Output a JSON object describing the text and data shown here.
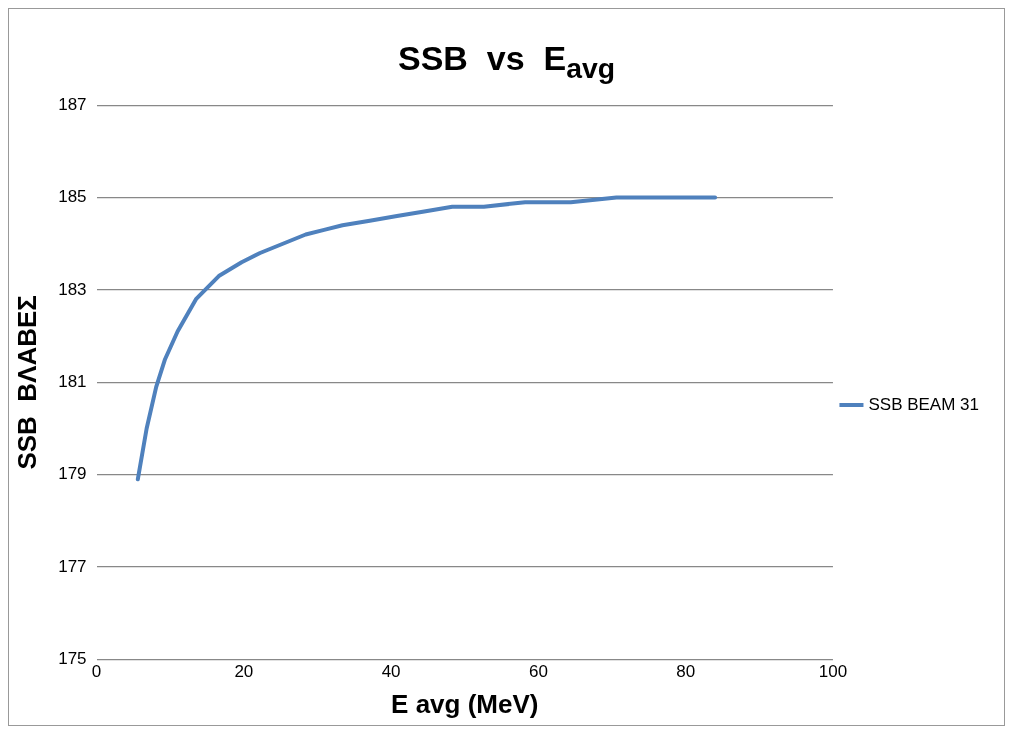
{
  "chart_data": {
    "type": "line",
    "title": "SSB  vs  E$_{avg}$",
    "xlabel": "E avg (MeV)",
    "ylabel": "SSB  ΒΛΑΒΕΣ",
    "xlim": [
      0,
      100
    ],
    "xticks": [
      0,
      20,
      40,
      60,
      80,
      100
    ],
    "ylim": [
      175,
      187
    ],
    "yticks": [
      175,
      177,
      179,
      181,
      183,
      185,
      187
    ],
    "grid": "y",
    "legend": "right",
    "marker": "none",
    "series": [
      {
        "name": "SSB BEAM 31",
        "color": "#4f81bd",
        "x": [
          5.6,
          6.8,
          8.1,
          9.3,
          11,
          13.5,
          16.6,
          19.7,
          22.2,
          25.3,
          28.4,
          30.9,
          33.4,
          37.1,
          40.8,
          44.5,
          48.3,
          52.6,
          58.2,
          64.4,
          70.6,
          76.8,
          84
        ],
        "values": [
          178.9,
          180.0,
          180.9,
          181.5,
          182.1,
          182.8,
          183.3,
          183.6,
          183.8,
          184.0,
          184.2,
          184.3,
          184.4,
          184.5,
          184.6,
          184.7,
          184.8,
          184.8,
          184.9,
          184.9,
          185.0,
          185.0,
          185.0
        ]
      }
    ]
  }
}
